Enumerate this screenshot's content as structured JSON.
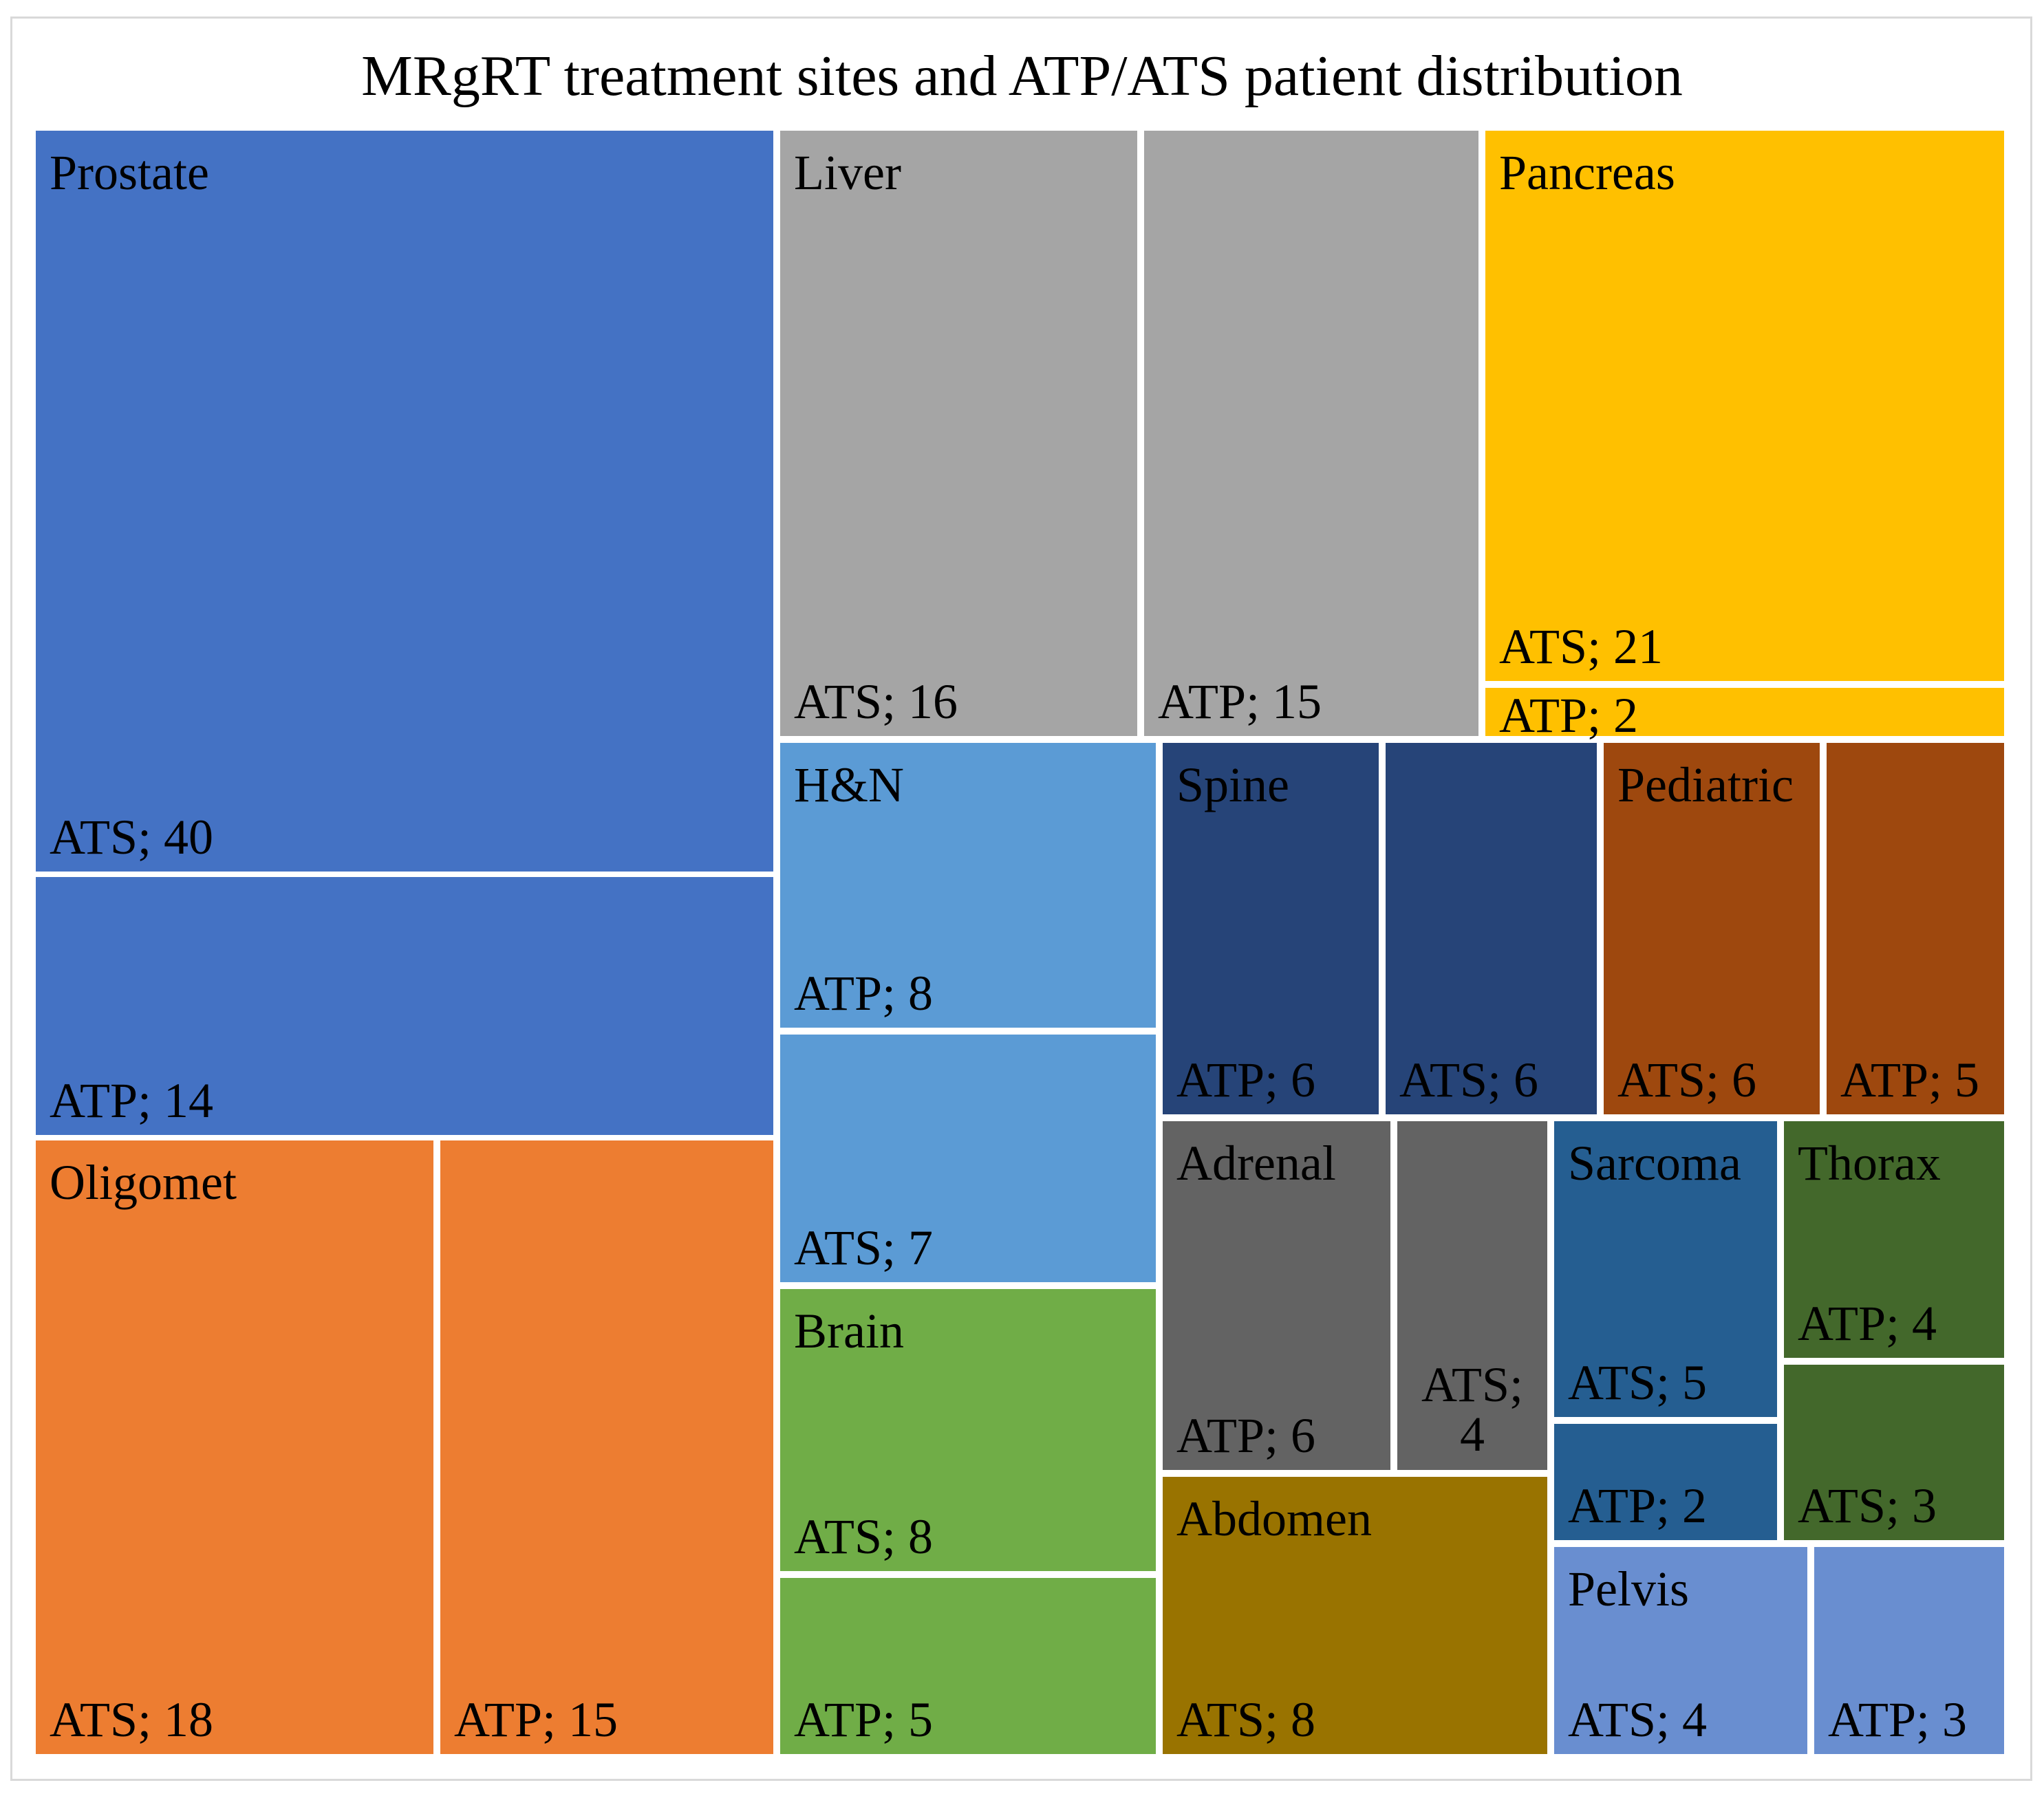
{
  "chart_data": {
    "type": "treemap",
    "title": "MRgRT treatment sites and ATP/ATS patient distribution",
    "groups": [
      {
        "name": "Prostate",
        "color": "#4472C4",
        "text_color": "#000000",
        "leaves": [
          {
            "label": "ATS; 40",
            "category": "ATS",
            "value": 40
          },
          {
            "label": "ATP; 14",
            "category": "ATP",
            "value": 14
          }
        ]
      },
      {
        "name": "Oligomet",
        "color": "#ED7D31",
        "text_color": "#000000",
        "leaves": [
          {
            "label": "ATS; 18",
            "category": "ATS",
            "value": 18
          },
          {
            "label": "ATP; 15",
            "category": "ATP",
            "value": 15
          }
        ]
      },
      {
        "name": "Liver",
        "color": "#A5A5A5",
        "text_color": "#000000",
        "leaves": [
          {
            "label": "ATS; 16",
            "category": "ATS",
            "value": 16
          },
          {
            "label": "ATP; 15",
            "category": "ATP",
            "value": 15
          }
        ]
      },
      {
        "name": "Pancreas",
        "color": "#FFC000",
        "text_color": "#000000",
        "leaves": [
          {
            "label": "ATS; 21",
            "category": "ATS",
            "value": 21
          },
          {
            "label": "ATP; 2",
            "category": "ATP",
            "value": 2
          }
        ]
      },
      {
        "name": "H&N",
        "color": "#5B9BD5",
        "text_color": "#000000",
        "leaves": [
          {
            "label": "ATP; 8",
            "category": "ATP",
            "value": 8
          },
          {
            "label": "ATS; 7",
            "category": "ATS",
            "value": 7
          }
        ]
      },
      {
        "name": "Brain",
        "color": "#70AD47",
        "text_color": "#000000",
        "leaves": [
          {
            "label": "ATS; 8",
            "category": "ATS",
            "value": 8
          },
          {
            "label": "ATP; 5",
            "category": "ATP",
            "value": 5
          }
        ]
      },
      {
        "name": "Spine",
        "color": "#264478",
        "text_color": "#000000",
        "leaves": [
          {
            "label": "ATP; 6",
            "category": "ATP",
            "value": 6
          },
          {
            "label": "ATS; 6",
            "category": "ATS",
            "value": 6
          }
        ]
      },
      {
        "name": "Pediatric",
        "color": "#9E480E",
        "text_color": "#000000",
        "leaves": [
          {
            "label": "ATS; 6",
            "category": "ATS",
            "value": 6
          },
          {
            "label": "ATP; 5",
            "category": "ATP",
            "value": 5
          }
        ]
      },
      {
        "name": "Adrenal",
        "color": "#636363",
        "text_color": "#000000",
        "leaves": [
          {
            "label": "ATP; 6",
            "category": "ATP",
            "value": 6
          },
          {
            "label": "ATS; 4",
            "category": "ATS",
            "value": 4
          }
        ]
      },
      {
        "name": "Abdomen",
        "color": "#997300",
        "text_color": "#000000",
        "leaves": [
          {
            "label": "ATS; 8",
            "category": "ATS",
            "value": 8
          }
        ]
      },
      {
        "name": "Sarcoma",
        "color": "#255E91",
        "text_color": "#000000",
        "leaves": [
          {
            "label": "ATS; 5",
            "category": "ATS",
            "value": 5
          },
          {
            "label": "ATP; 2",
            "category": "ATP",
            "value": 2
          }
        ]
      },
      {
        "name": "Thorax",
        "color": "#43682B",
        "text_color": "#000000",
        "leaves": [
          {
            "label": "ATP; 4",
            "category": "ATP",
            "value": 4
          },
          {
            "label": "ATS; 3",
            "category": "ATS",
            "value": 3
          }
        ]
      },
      {
        "name": "Pelvis",
        "color": "#698ED0",
        "text_color": "#000000",
        "leaves": [
          {
            "label": "ATS; 4",
            "category": "ATS",
            "value": 4
          },
          {
            "label": "ATP; 3",
            "category": "ATP",
            "value": 3
          }
        ]
      }
    ]
  }
}
